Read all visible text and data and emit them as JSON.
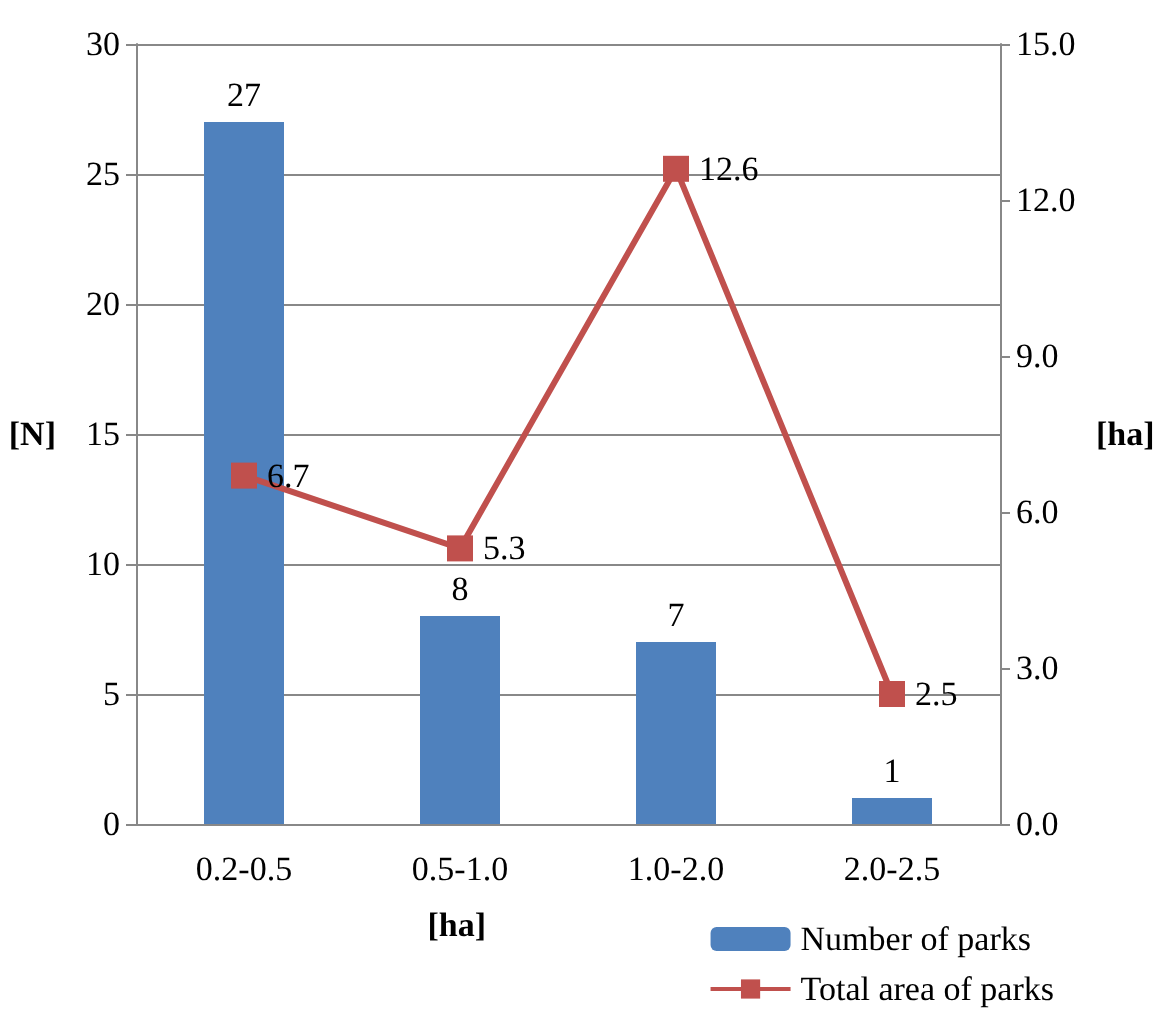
{
  "chart_data": {
    "type": "bar",
    "categories": [
      "0.2-0.5",
      "0.5-1.0",
      "1.0-2.0",
      "2.0-2.5"
    ],
    "series": [
      {
        "name": "Number of parks",
        "color": "#4f81bd",
        "values": [
          27,
          8,
          7,
          1
        ]
      },
      {
        "name": "Total area of parks",
        "type": "line",
        "axis": "y2",
        "color": "#c0504d",
        "marker": "square",
        "values": [
          6.7,
          5.3,
          12.6,
          2.5
        ]
      }
    ],
    "xlabel": "[ha]",
    "ylabel": "[N]",
    "y2label": "[ha]",
    "ylim": [
      0,
      30
    ],
    "yticks": [
      0,
      5,
      10,
      15,
      20,
      25,
      30
    ],
    "y2lim": [
      0,
      15
    ],
    "y2ticks": [
      {
        "value": 0,
        "label": "0.0"
      },
      {
        "value": 3,
        "label": "3.0"
      },
      {
        "value": 6,
        "label": "6.0"
      },
      {
        "value": 9,
        "label": "9.0"
      },
      {
        "value": 12,
        "label": "12.0"
      },
      {
        "value": 15,
        "label": "15.0"
      }
    ],
    "grid": "y",
    "legend": "bottom right",
    "data_labels": true
  }
}
